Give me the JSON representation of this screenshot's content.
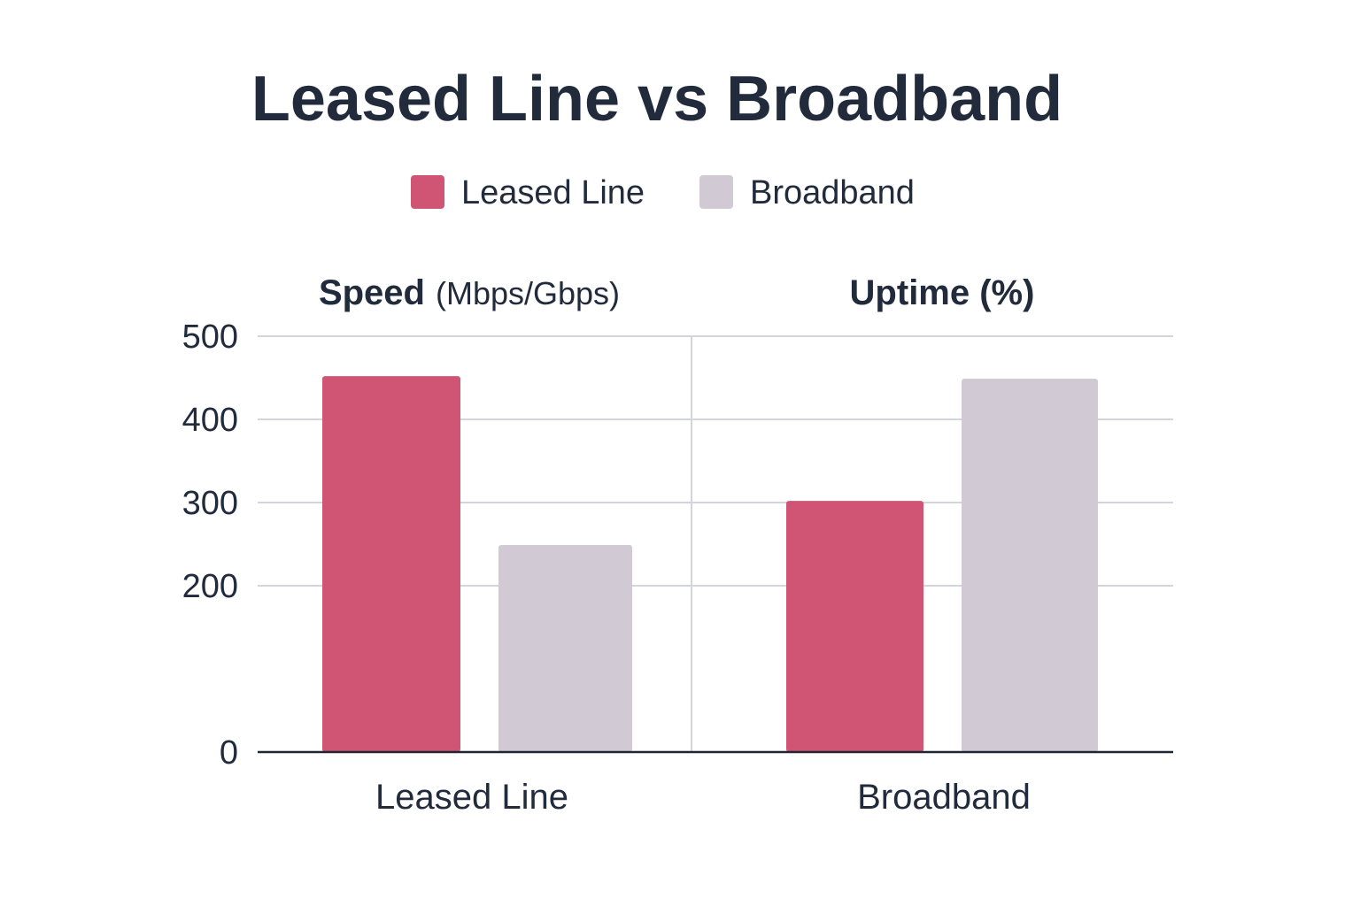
{
  "chart_data": {
    "type": "bar",
    "title": "Leased Line vs Broadband",
    "legend": {
      "placement": "top-center",
      "items": [
        {
          "label": "Leased Line",
          "color": "#d05575"
        },
        {
          "label": "Broadband",
          "color": "#d1cad5"
        }
      ]
    },
    "panel_titles": [
      {
        "bold": "Speed",
        "rest": "(Mbps/Gbps)"
      },
      {
        "bold": "Uptime (%)",
        "rest": ""
      }
    ],
    "categories": [
      "Leased Line",
      "Broadband"
    ],
    "series": [
      {
        "name": "Leased Line",
        "color": "#d05575",
        "values": [
          452,
          302
        ]
      },
      {
        "name": "Broadband",
        "color": "#d1cad5",
        "values": [
          249,
          449
        ]
      }
    ],
    "y_ticks": [
      500,
      400,
      300,
      200,
      0
    ],
    "ylim": [
      0,
      500
    ],
    "grid": true,
    "colors": {
      "text": "#222b3c",
      "grid": "#d4d4de",
      "axis": "#1e2533"
    }
  }
}
